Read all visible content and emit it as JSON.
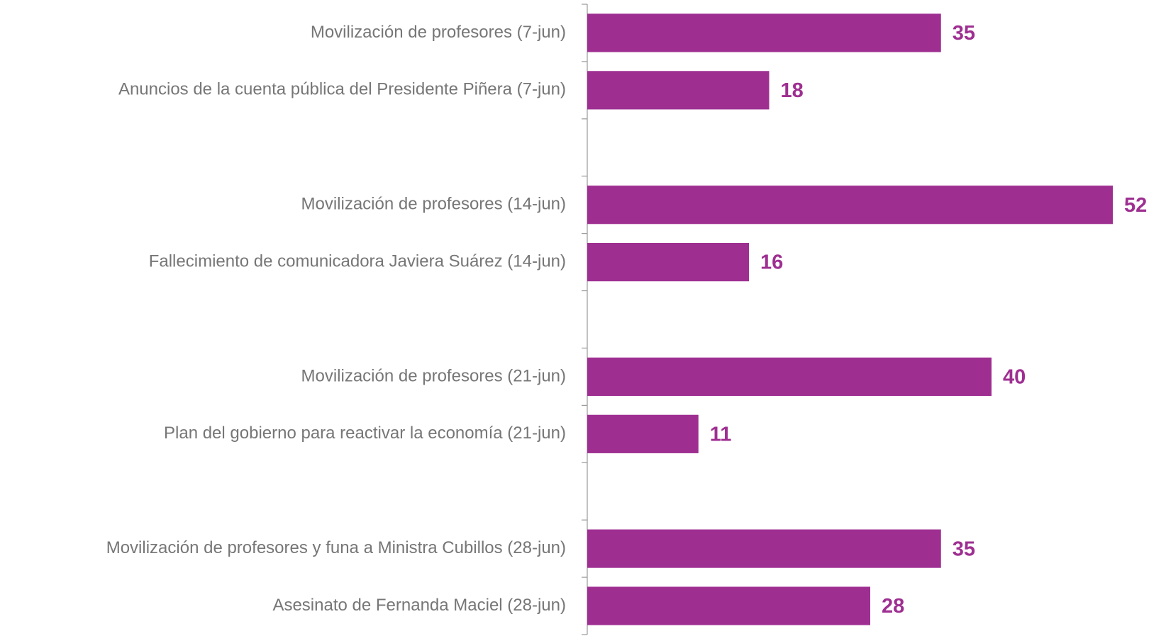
{
  "chart_data": {
    "type": "hbar",
    "categories": [
      "Movilización de profesores (7-jun)",
      "Anuncios de la cuenta pública del Presidente Piñera (7-jun)",
      null,
      "Movilización de profesores (14-jun)",
      "Fallecimiento de comunicadora Javiera Suárez (14-jun)",
      null,
      "Movilización de profesores (21-jun)",
      "Plan del gobierno para reactivar la economía (21-jun)",
      null,
      "Movilización de profesores y funa a Ministra Cubillos (28-jun)",
      "Asesinato de Fernanda Maciel (28-jun)"
    ],
    "values": [
      35,
      18,
      null,
      52,
      16,
      null,
      40,
      11,
      null,
      35,
      28
    ],
    "color": "#9e2f91"
  }
}
